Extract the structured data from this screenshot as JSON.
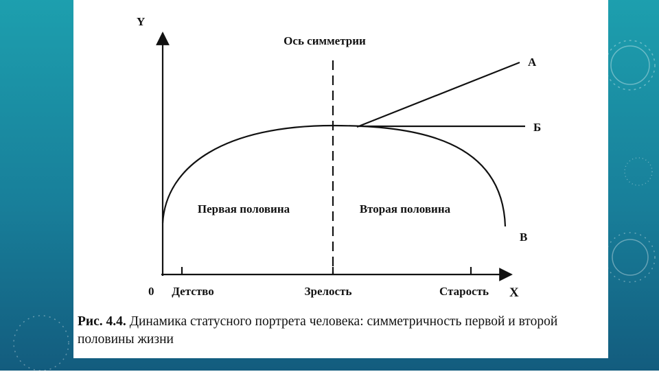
{
  "diagram": {
    "axes": {
      "y": "Y",
      "x": "X",
      "origin": "0"
    },
    "symmetry_axis": "Ось симметрии",
    "curves": {
      "a": "А",
      "b": "Б",
      "v": "В"
    },
    "regions": {
      "first": "Первая половина",
      "second": "Вторая половина"
    },
    "stages": [
      "Детство",
      "Зрелость",
      "Старость"
    ]
  },
  "caption": {
    "number": "Рис. 4.4.",
    "text": "Динамика статусного портрета человека: симметричность первой и второй половины жизни"
  }
}
